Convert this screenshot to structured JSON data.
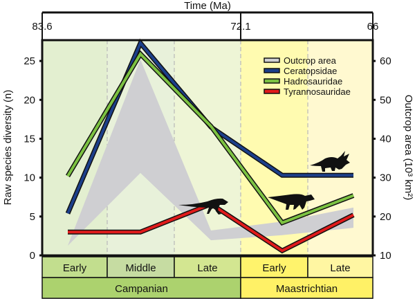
{
  "chart_data": {
    "type": "line",
    "top_axis": {
      "label": "Time (Ma)",
      "ticks": [
        "83.6",
        "72.1",
        "66"
      ]
    },
    "ylabel": "Raw species diversity (n)",
    "y2label": "Outcrop area (10³ km²)",
    "ylim": [
      0,
      27.5
    ],
    "y2lim": [
      10,
      65
    ],
    "yticks": [
      0,
      5,
      10,
      15,
      20,
      25
    ],
    "y2ticks": [
      10,
      20,
      30,
      40,
      50,
      60
    ],
    "categories": [
      "Early Campanian",
      "Middle Campanian",
      "Late Campanian",
      "Early Maastrichtian",
      "Late Maastrichtian"
    ],
    "substages": [
      {
        "label": "Early",
        "color": "#c2de8e",
        "bg": "#e3efd0"
      },
      {
        "label": "Middle",
        "color": "#c6dca2",
        "bg": "#e8f1da"
      },
      {
        "label": "Late",
        "color": "#d3e691",
        "bg": "#eef5d6"
      },
      {
        "label": "Early",
        "color": "#fff36c",
        "bg": "#fffbb0"
      },
      {
        "label": "Late",
        "color": "#fff6a2",
        "bg": "#fff9d0"
      }
    ],
    "stages": [
      {
        "label": "Campanian",
        "color": "#acd26e",
        "span": 3
      },
      {
        "label": "Maastrichtian",
        "color": "#fff166",
        "span": 2
      }
    ],
    "outcrop_area": {
      "name": "Outcrop area",
      "color": "#cfcfd2",
      "upper": [
        12.5,
        60.4,
        16.4,
        18.7,
        22.3
      ],
      "lower": [
        12.5,
        31.2,
        13.9,
        15.2,
        17.1
      ]
    },
    "series": [
      {
        "name": "Ceratopsidae",
        "color": "#1c3f8a",
        "values": [
          5.4,
          27.3,
          16.5,
          10.3,
          10.3
        ]
      },
      {
        "name": "Hadrosauridae",
        "color": "#7cc242",
        "values": [
          10.2,
          25.9,
          16.6,
          4.2,
          7.7
        ]
      },
      {
        "name": "Tyrannosauridae",
        "color": "#e01b1b",
        "values": [
          3,
          3,
          6.6,
          0.6,
          5.2
        ]
      }
    ],
    "legend": "top-right",
    "grid": false
  }
}
